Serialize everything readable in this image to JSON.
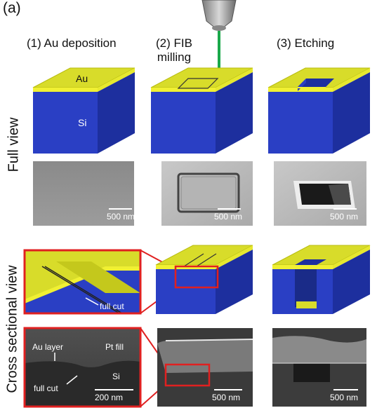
{
  "panel_label": "(a)",
  "steps": [
    {
      "label": "(1) Au deposition"
    },
    {
      "label_line1": "(2) FIB",
      "label_line2": "milling"
    },
    {
      "label": "(3) Etching"
    }
  ],
  "row_labels": {
    "full_view": "Full view",
    "cross_section": "Cross sectional view"
  },
  "materials": {
    "au": "Au",
    "si": "Si"
  },
  "annotations": {
    "full_cut_inset": "full cut",
    "au_layer": "Au layer",
    "pt_fill": "Pt fill",
    "si": "Si",
    "full_cut_sem": "full cut"
  },
  "scale_bars": {
    "sem1": "500 nm",
    "sem2": "500 nm",
    "sem3": "500 nm",
    "xs_left": "200 nm",
    "xs_mid": "500 nm",
    "xs_right": "500 nm"
  },
  "colors": {
    "gold": "#d8dc2a",
    "gold_edge": "#f0f033",
    "silicon": "#2a3fc4",
    "silicon_side": "#1d2f9e",
    "highlight": "#e02020",
    "beam": "#1aa84a"
  }
}
